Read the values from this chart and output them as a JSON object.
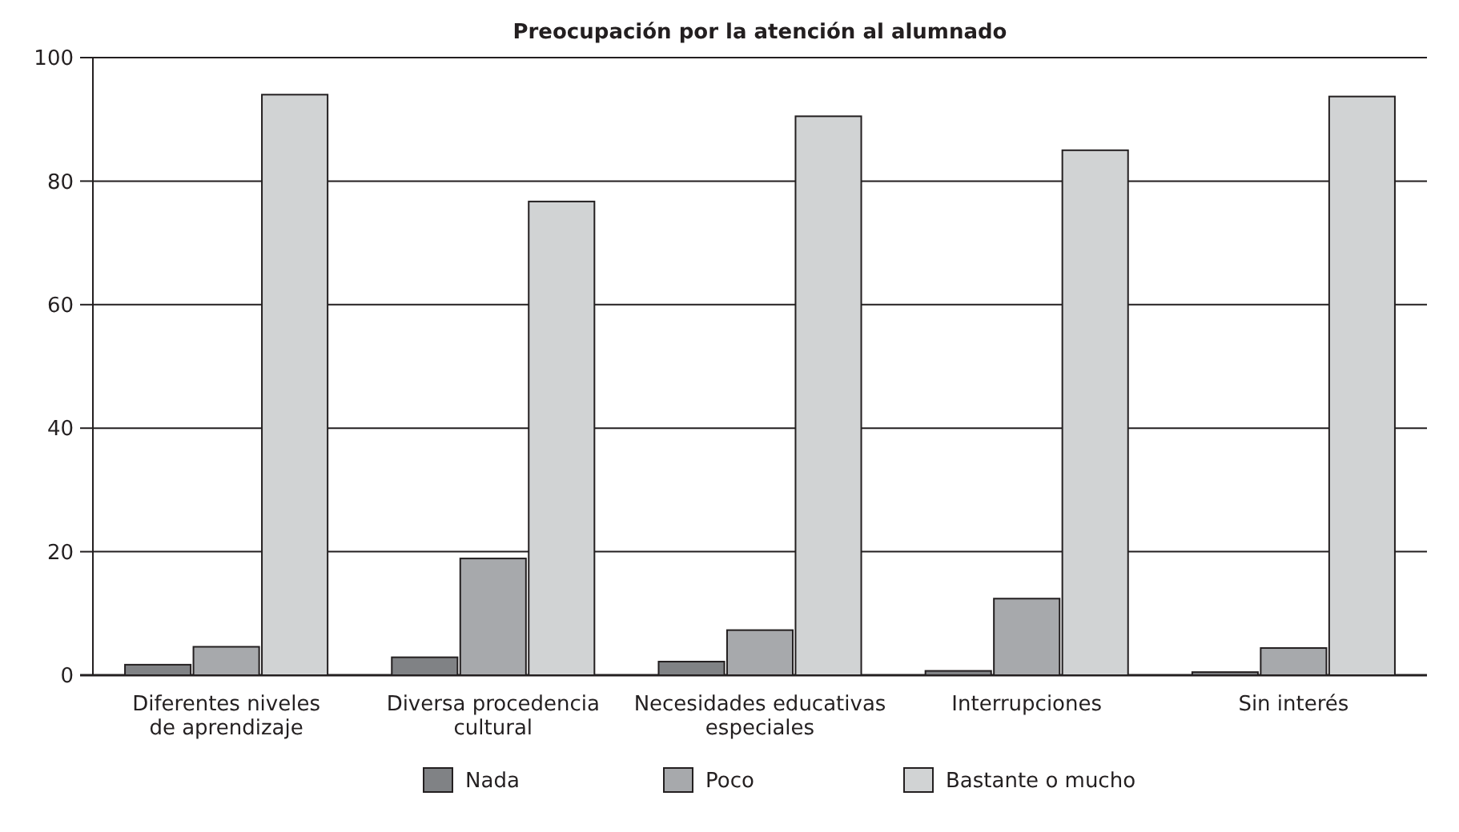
{
  "chart_data": {
    "type": "bar",
    "title": "Preocupación por la atención al alumnado",
    "categories": [
      "Diferentes niveles\nde aprendizaje",
      "Diversa procedencia\ncultural",
      "Necesidades educativas\nespeciales",
      "Interrupciones",
      "Sin interés"
    ],
    "series": [
      {
        "name": "Nada",
        "color": "#808285",
        "values": [
          1.7,
          2.9,
          2.2,
          0.7,
          0.5
        ]
      },
      {
        "name": "Poco",
        "color": "#a7a9ac",
        "values": [
          4.6,
          18.9,
          7.3,
          12.4,
          4.4
        ]
      },
      {
        "name": "Bastante o mucho",
        "color": "#d1d3d4",
        "values": [
          94,
          76.7,
          90.5,
          85,
          93.7
        ]
      }
    ],
    "ylim": [
      0,
      100
    ],
    "yticks": [
      0,
      20,
      40,
      60,
      80,
      100
    ],
    "grid": "y",
    "legend": "bottom"
  }
}
